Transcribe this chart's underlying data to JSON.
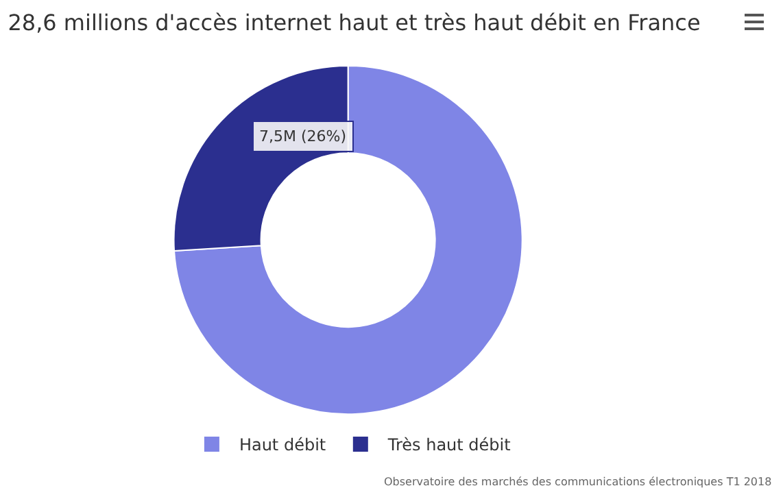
{
  "chart_data": {
    "type": "donut",
    "title": "28,6 millions d'accès internet haut et très haut débit en France",
    "categories": [
      "Haut débit",
      "Très haut débit"
    ],
    "values": [
      74,
      26
    ],
    "colors": [
      "#7f85e6",
      "#2b2f8f"
    ],
    "value_labels": [
      null,
      "7,5M (26%)"
    ],
    "legend": "bottom",
    "annotations": [
      "Observatoire des marchés des communications électroniques T1 2018"
    ]
  }
}
